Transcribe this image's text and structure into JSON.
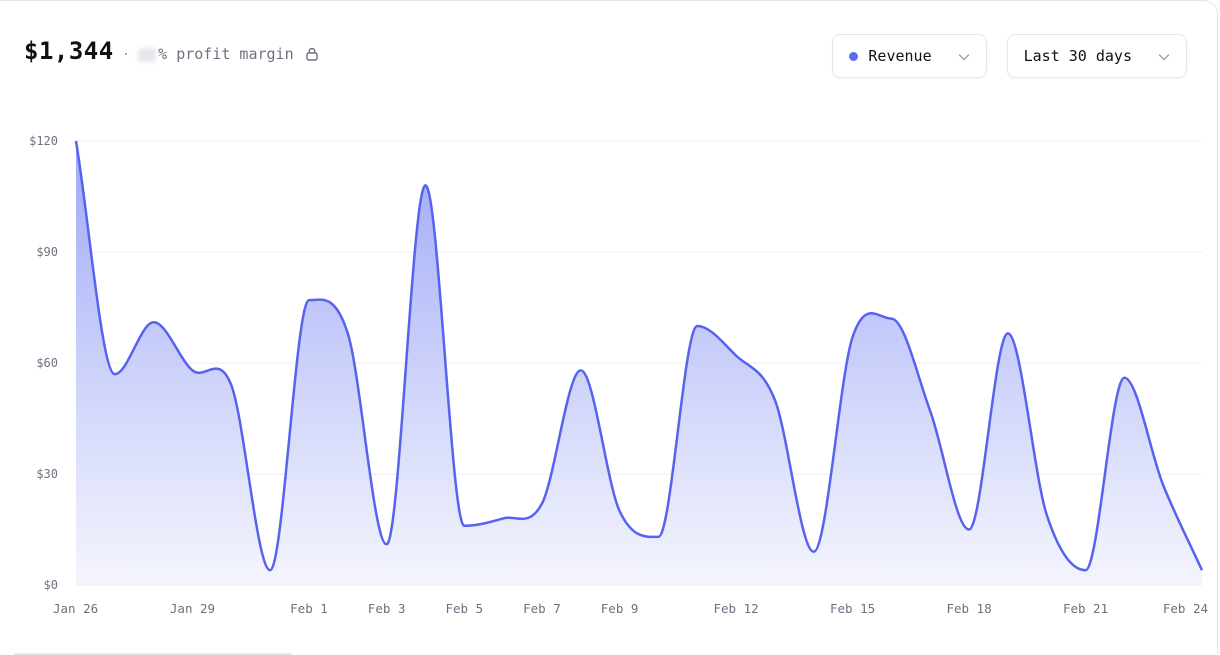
{
  "summary": {
    "total": "$1,344",
    "separator": "·",
    "margin_label": "% profit margin"
  },
  "controls": {
    "series_select": {
      "label": "Revenue",
      "dot_color": "#5b6bf5"
    },
    "range_select": {
      "label": "Last 30 days"
    }
  },
  "icons": {
    "lock": "lock-icon",
    "chevron": "chevron-down-icon"
  },
  "colors": {
    "line": "#5663ee",
    "fill_top": "#9aa4f6",
    "fill_bottom": "#f3f4fd",
    "grid": "#eeeeee",
    "tick": "#6b7280"
  },
  "chart_data": {
    "type": "area",
    "x": [
      "Jan 26",
      "Jan 27",
      "Jan 28",
      "Jan 29",
      "Jan 30",
      "Jan 31",
      "Feb 1",
      "Feb 2",
      "Feb 3",
      "Feb 4",
      "Feb 5",
      "Feb 6",
      "Feb 7",
      "Feb 8",
      "Feb 9",
      "Feb 10",
      "Feb 11",
      "Feb 12",
      "Feb 13",
      "Feb 14",
      "Feb 15",
      "Feb 16",
      "Feb 17",
      "Feb 18",
      "Feb 19",
      "Feb 20",
      "Feb 21",
      "Feb 22",
      "Feb 23",
      "Feb 24"
    ],
    "series": [
      {
        "values": [
          120,
          57,
          71,
          58,
          54,
          4,
          77,
          68,
          11,
          108,
          16,
          18,
          22,
          58,
          20,
          13,
          70,
          62,
          50,
          9,
          67,
          72,
          47,
          15,
          68,
          19,
          4,
          56,
          27,
          4
        ]
      }
    ],
    "x_tick_labels": [
      "Jan 26",
      "Jan 29",
      "Feb 1",
      "Feb 3",
      "Feb 5",
      "Feb 7",
      "Feb 9",
      "Feb 12",
      "Feb 15",
      "Feb 18",
      "Feb 21",
      "Feb 24"
    ],
    "y_ticks": [
      0,
      30,
      60,
      90,
      120
    ],
    "y_tick_labels": [
      "$0",
      "$30",
      "$60",
      "$90",
      "$120"
    ],
    "ylim": [
      0,
      120
    ],
    "grid": true,
    "legend": "none"
  }
}
